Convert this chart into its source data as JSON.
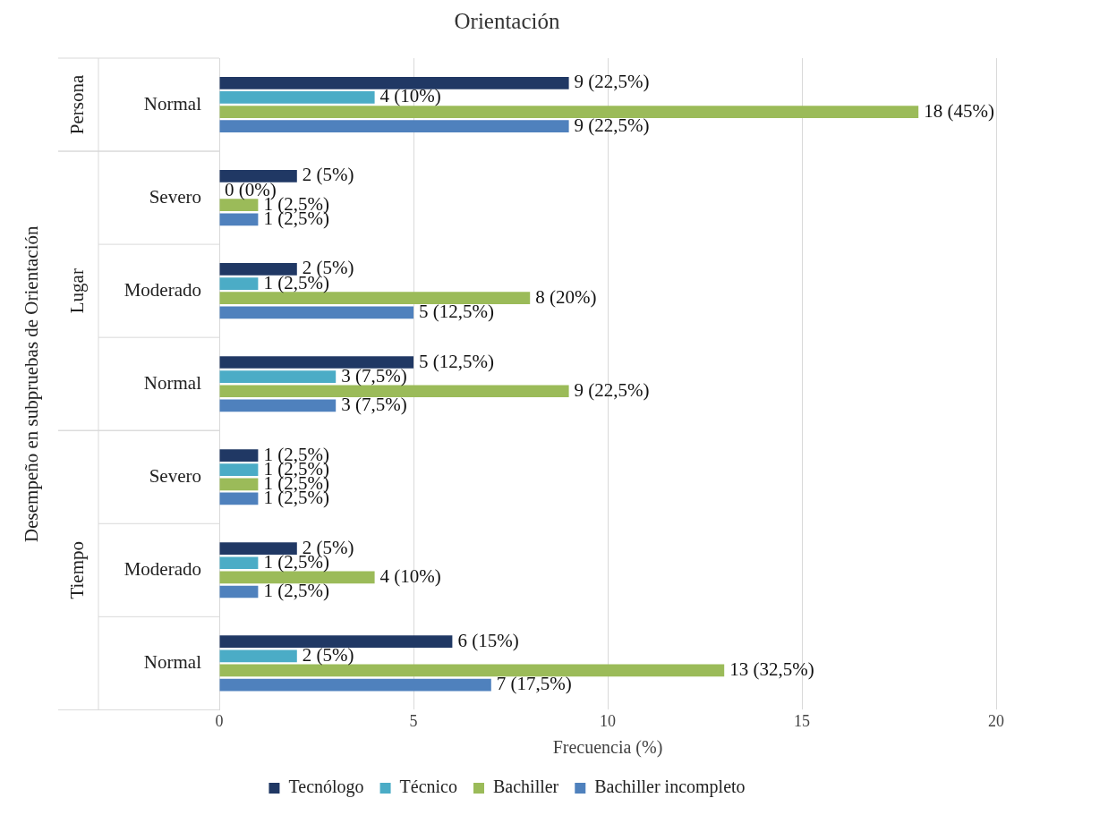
{
  "chart_data": {
    "type": "bar",
    "orientation": "horizontal",
    "title": "Orientación",
    "xlabel": "Frecuencia (%)",
    "ylabel": "Desempeño en subpruebas de Orientación",
    "categories": [
      "Normal",
      "Severo",
      "Moderado",
      "Normal",
      "Severo",
      "Moderado",
      "Normal"
    ],
    "annotations": [
      "Persona",
      "Lugar",
      "Tiempo"
    ],
    "series": [
      {
        "name": "Tecnólogo",
        "color": "#203864",
        "values": [
          9,
          2,
          2,
          5,
          1,
          2,
          6
        ],
        "value_labels": [
          "9 (22,5%)",
          "2 (5%)",
          "2 (5%)",
          "5 (12,5%)",
          "1 (2,5%)",
          "2 (5%)",
          "6 (15%)"
        ]
      },
      {
        "name": "Técnico",
        "color": "#4bacc6",
        "values": [
          4,
          0,
          1,
          3,
          1,
          1,
          2
        ],
        "value_labels": [
          "4 (10%)",
          "0 (0%)",
          "1 (2,5%)",
          "3 (7,5%)",
          "1 (2,5%)",
          "1 (2,5%)",
          "2 (5%)"
        ]
      },
      {
        "name": "Bachiller",
        "color": "#9bbb59",
        "values": [
          18,
          1,
          8,
          9,
          1,
          4,
          13
        ],
        "value_labels": [
          "18 (45%)",
          "1 (2,5%)",
          "8 (20%)",
          "9 (22,5%)",
          "1 (2,5%)",
          "4 (10%)",
          "13 (32,5%)"
        ]
      },
      {
        "name": "Bachiller incompleto",
        "color": "#4f81bd",
        "values": [
          9,
          1,
          5,
          3,
          1,
          1,
          7
        ],
        "value_labels": [
          "9 (22,5%)",
          "1 (2,5%)",
          "5 (12,5%)",
          "3 (7,5%)",
          "1 (2,5%)",
          "1 (2,5%)",
          "7 (17,5%)"
        ]
      }
    ],
    "xlim": [
      0,
      20
    ],
    "xticks": [
      0,
      5,
      10,
      15,
      20
    ],
    "grid": "x",
    "legend": "bottom"
  }
}
